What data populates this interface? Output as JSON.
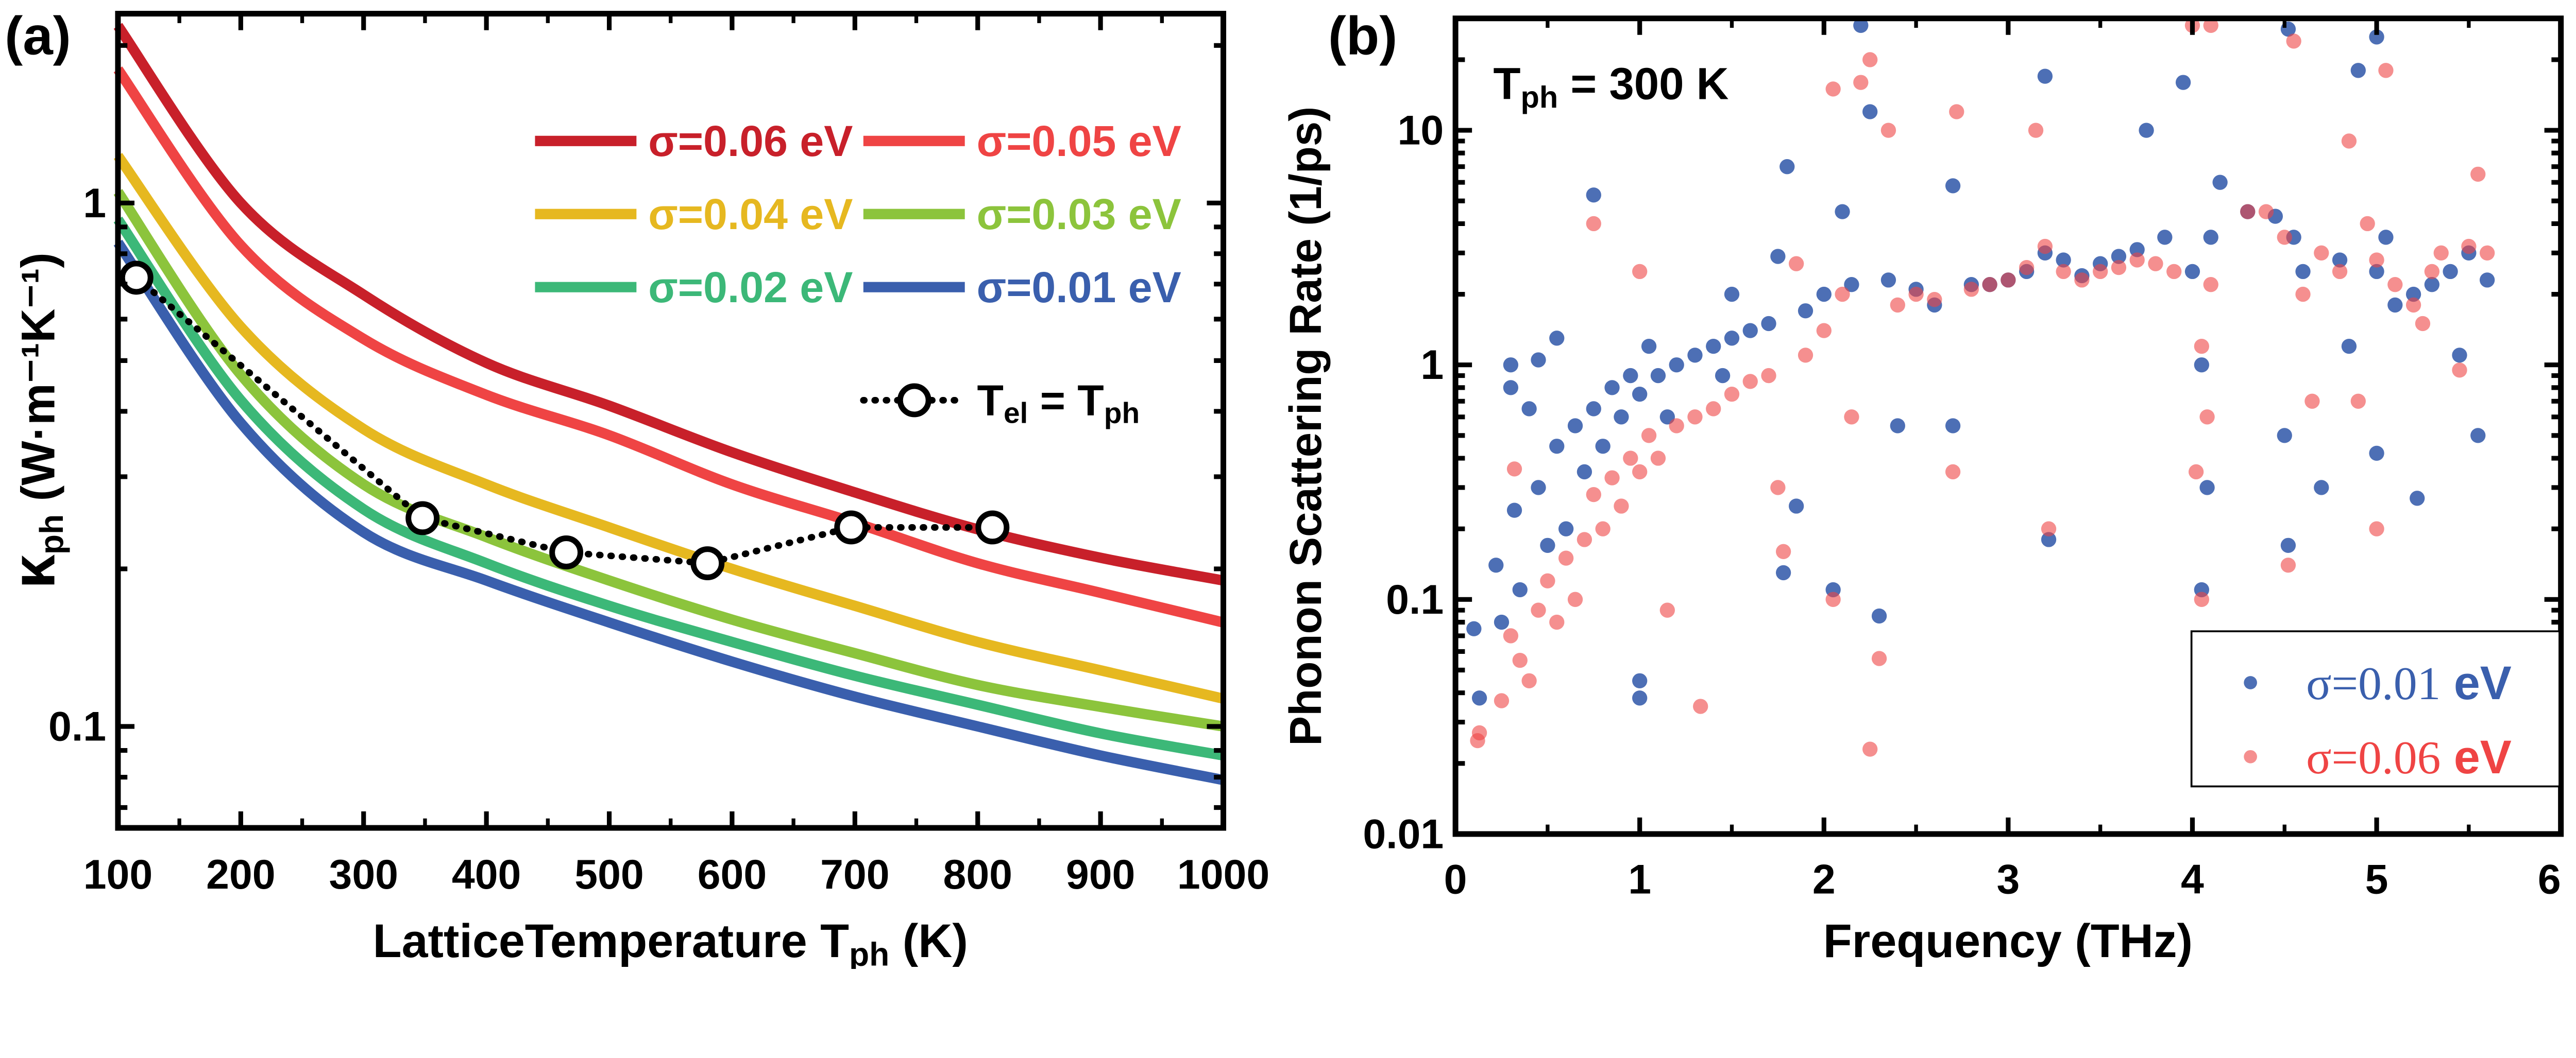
{
  "chart_data": [
    {
      "panel_label": "(a)",
      "type": "line",
      "xlabel": {
        "main": "LatticeTemperature T",
        "sub": "ph",
        "unit": " (K)"
      },
      "ylabel": {
        "main": "κ",
        "sub": "ph",
        "unit": " (W·m⁻¹K⁻¹)"
      },
      "xlim": [
        100,
        1000
      ],
      "ylim": [
        0.064,
        2.3
      ],
      "yscale": "log",
      "xticks": [
        "100",
        "200",
        "300",
        "400",
        "500",
        "600",
        "700",
        "800",
        "900",
        "1000"
      ],
      "yticks": [
        "0.1",
        "1"
      ],
      "grid": false,
      "legend_placement": "top-right",
      "x": [
        100,
        200,
        300,
        400,
        500,
        600,
        700,
        800,
        900,
        1000
      ],
      "series": [
        {
          "name": "σ=0.06 eV",
          "color": "#c8202a",
          "values": [
            2.18,
            1.0,
            0.668,
            0.495,
            0.41,
            0.334,
            0.28,
            0.238,
            0.21,
            0.19
          ]
        },
        {
          "name": "σ=0.05 eV",
          "color": "#ef4444",
          "values": [
            1.8,
            0.83,
            0.55,
            0.43,
            0.36,
            0.29,
            0.245,
            0.205,
            0.18,
            0.158
          ]
        },
        {
          "name": "σ=0.04 eV",
          "color": "#e6b820",
          "values": [
            1.23,
            0.58,
            0.37,
            0.29,
            0.24,
            0.2,
            0.17,
            0.145,
            0.128,
            0.113
          ]
        },
        {
          "name": "σ=0.03 eV",
          "color": "#8cc43c",
          "values": [
            1.05,
            0.47,
            0.29,
            0.23,
            0.19,
            0.16,
            0.138,
            0.12,
            0.109,
            0.1
          ]
        },
        {
          "name": "σ=0.02 eV",
          "color": "#3cb878",
          "values": [
            0.93,
            0.42,
            0.26,
            0.205,
            0.17,
            0.145,
            0.125,
            0.11,
            0.097,
            0.088
          ]
        },
        {
          "name": "σ=0.01 eV",
          "color": "#3a5fad",
          "values": [
            0.84,
            0.38,
            0.235,
            0.19,
            0.158,
            0.133,
            0.114,
            0.1,
            0.088,
            0.079
          ]
        }
      ],
      "marker_series": {
        "name": {
          "main": "T",
          "sub1": "el",
          "mid": " = T",
          "sub2": "ph"
        },
        "color": "#000000",
        "x": [
          115,
          348,
          465,
          580,
          697,
          812
        ],
        "values": [
          0.72,
          0.25,
          0.215,
          0.205,
          0.24,
          0.24
        ]
      }
    },
    {
      "panel_label": "(b)",
      "type": "scatter",
      "annotation": {
        "main": "T",
        "sub": "ph",
        "rest": " = 300 K"
      },
      "xlabel": "Frequency (THz)",
      "ylabel": "Phonon Scattering Rate (1/ps)",
      "xlim": [
        0,
        6
      ],
      "ylim": [
        0.01,
        30
      ],
      "yscale": "log",
      "xticks": [
        "0",
        "1",
        "2",
        "3",
        "4",
        "5",
        "6"
      ],
      "yticks": [
        "0.01",
        "0.1",
        "1",
        "10"
      ],
      "grid": false,
      "legend_placement": "bottom-right",
      "series": [
        {
          "name": {
            "sigma": "σ=0.01",
            "unit": " eV"
          },
          "color": "#3a5fad",
          "points": [
            [
              0.1,
              0.075
            ],
            [
              0.13,
              0.038
            ],
            [
              0.22,
              0.14
            ],
            [
              0.25,
              0.08
            ],
            [
              0.3,
              1.0
            ],
            [
              0.3,
              0.8
            ],
            [
              0.32,
              0.24
            ],
            [
              0.35,
              0.11
            ],
            [
              0.4,
              0.65
            ],
            [
              0.45,
              0.3
            ],
            [
              0.45,
              1.05
            ],
            [
              0.5,
              0.17
            ],
            [
              0.55,
              1.3
            ],
            [
              0.55,
              0.45
            ],
            [
              0.6,
              0.2
            ],
            [
              0.65,
              0.55
            ],
            [
              0.7,
              0.35
            ],
            [
              0.75,
              5.3
            ],
            [
              0.75,
              0.65
            ],
            [
              0.8,
              0.45
            ],
            [
              0.85,
              0.8
            ],
            [
              0.9,
              0.6
            ],
            [
              0.95,
              0.9
            ],
            [
              1.0,
              0.045
            ],
            [
              1.0,
              0.038
            ],
            [
              1.0,
              0.75
            ],
            [
              1.05,
              1.2
            ],
            [
              1.1,
              0.9
            ],
            [
              1.15,
              0.6
            ],
            [
              1.2,
              1.0
            ],
            [
              1.3,
              1.1
            ],
            [
              1.4,
              1.2
            ],
            [
              1.45,
              0.9
            ],
            [
              1.5,
              1.3
            ],
            [
              1.5,
              2.0
            ],
            [
              1.6,
              1.4
            ],
            [
              1.7,
              1.5
            ],
            [
              1.75,
              2.9
            ],
            [
              1.78,
              0.13
            ],
            [
              1.8,
              7.0
            ],
            [
              1.85,
              0.25
            ],
            [
              1.9,
              1.7
            ],
            [
              2.0,
              2.0
            ],
            [
              2.05,
              0.11
            ],
            [
              2.1,
              4.5
            ],
            [
              2.15,
              2.2
            ],
            [
              2.2,
              28
            ],
            [
              2.25,
              12
            ],
            [
              2.3,
              0.085
            ],
            [
              2.35,
              2.3
            ],
            [
              2.4,
              0.55
            ],
            [
              2.5,
              2.1
            ],
            [
              2.6,
              1.8
            ],
            [
              2.7,
              5.8
            ],
            [
              2.7,
              0.55
            ],
            [
              2.8,
              2.2
            ],
            [
              2.9,
              2.2
            ],
            [
              3.0,
              2.3
            ],
            [
              3.1,
              2.5
            ],
            [
              3.2,
              17
            ],
            [
              3.2,
              3.0
            ],
            [
              3.22,
              0.18
            ],
            [
              3.3,
              2.8
            ],
            [
              3.4,
              2.4
            ],
            [
              3.5,
              2.7
            ],
            [
              3.6,
              2.9
            ],
            [
              3.7,
              3.1
            ],
            [
              3.75,
              10
            ],
            [
              3.85,
              3.5
            ],
            [
              3.95,
              16
            ],
            [
              4.0,
              2.5
            ],
            [
              4.05,
              1.0
            ],
            [
              4.05,
              0.11
            ],
            [
              4.08,
              0.3
            ],
            [
              4.1,
              3.5
            ],
            [
              4.15,
              6.0
            ],
            [
              4.3,
              4.5
            ],
            [
              4.45,
              4.3
            ],
            [
              4.52,
              27
            ],
            [
              4.52,
              0.17
            ],
            [
              4.5,
              0.5
            ],
            [
              4.55,
              3.5
            ],
            [
              4.6,
              2.5
            ],
            [
              4.7,
              0.3
            ],
            [
              4.8,
              2.8
            ],
            [
              4.85,
              1.2
            ],
            [
              4.9,
              18
            ],
            [
              5.0,
              25
            ],
            [
              5.0,
              0.42
            ],
            [
              5.0,
              2.5
            ],
            [
              5.05,
              3.5
            ],
            [
              5.1,
              1.8
            ],
            [
              5.2,
              2.0
            ],
            [
              5.22,
              0.27
            ],
            [
              5.3,
              2.2
            ],
            [
              5.4,
              2.5
            ],
            [
              5.45,
              1.1
            ],
            [
              5.5,
              3.0
            ],
            [
              5.55,
              0.5
            ],
            [
              5.6,
              2.3
            ]
          ]
        },
        {
          "name": {
            "sigma": "σ=0.06",
            "unit": " eV"
          },
          "color": "#ef4444",
          "points": [
            [
              0.12,
              0.025
            ],
            [
              0.13,
              0.027
            ],
            [
              0.25,
              0.037
            ],
            [
              0.3,
              0.07
            ],
            [
              0.32,
              0.36
            ],
            [
              0.35,
              0.055
            ],
            [
              0.4,
              0.045
            ],
            [
              0.45,
              0.09
            ],
            [
              0.5,
              0.12
            ],
            [
              0.55,
              0.08
            ],
            [
              0.6,
              0.15
            ],
            [
              0.65,
              0.1
            ],
            [
              0.7,
              0.18
            ],
            [
              0.75,
              4.0
            ],
            [
              0.75,
              0.28
            ],
            [
              0.8,
              0.2
            ],
            [
              0.85,
              0.33
            ],
            [
              0.9,
              0.25
            ],
            [
              0.95,
              0.4
            ],
            [
              1.0,
              2.5
            ],
            [
              1.0,
              0.35
            ],
            [
              1.05,
              0.5
            ],
            [
              1.1,
              0.4
            ],
            [
              1.15,
              0.09
            ],
            [
              1.2,
              0.55
            ],
            [
              1.3,
              0.6
            ],
            [
              1.33,
              0.035
            ],
            [
              1.4,
              0.65
            ],
            [
              1.5,
              0.75
            ],
            [
              1.6,
              0.85
            ],
            [
              1.7,
              0.9
            ],
            [
              1.75,
              0.3
            ],
            [
              1.78,
              0.16
            ],
            [
              1.85,
              2.7
            ],
            [
              1.9,
              1.1
            ],
            [
              2.0,
              1.4
            ],
            [
              2.05,
              0.1
            ],
            [
              2.05,
              15
            ],
            [
              2.1,
              2.0
            ],
            [
              2.15,
              0.6
            ],
            [
              2.2,
              16
            ],
            [
              2.25,
              20
            ],
            [
              2.25,
              0.023
            ],
            [
              2.3,
              0.056
            ],
            [
              2.35,
              10
            ],
            [
              2.4,
              1.8
            ],
            [
              2.5,
              2.0
            ],
            [
              2.6,
              1.9
            ],
            [
              2.7,
              0.35
            ],
            [
              2.72,
              12
            ],
            [
              2.8,
              2.1
            ],
            [
              2.9,
              2.2
            ],
            [
              3.0,
              2.3
            ],
            [
              3.1,
              2.6
            ],
            [
              3.15,
              10
            ],
            [
              3.2,
              3.2
            ],
            [
              3.22,
              0.2
            ],
            [
              3.3,
              2.5
            ],
            [
              3.4,
              2.3
            ],
            [
              3.5,
              2.5
            ],
            [
              3.6,
              2.6
            ],
            [
              3.7,
              2.8
            ],
            [
              3.8,
              2.7
            ],
            [
              3.9,
              2.5
            ],
            [
              4.0,
              28
            ],
            [
              4.02,
              0.35
            ],
            [
              4.05,
              1.2
            ],
            [
              4.05,
              0.1
            ],
            [
              4.08,
              0.6
            ],
            [
              4.1,
              28
            ],
            [
              4.1,
              2.2
            ],
            [
              4.3,
              4.5
            ],
            [
              4.4,
              4.5
            ],
            [
              4.5,
              3.5
            ],
            [
              4.52,
              0.14
            ],
            [
              4.55,
              24
            ],
            [
              4.6,
              2.0
            ],
            [
              4.65,
              0.7
            ],
            [
              4.7,
              3.0
            ],
            [
              4.8,
              2.5
            ],
            [
              4.85,
              9
            ],
            [
              4.9,
              0.7
            ],
            [
              4.95,
              4.0
            ],
            [
              5.0,
              0.2
            ],
            [
              5.0,
              2.8
            ],
            [
              5.05,
              18
            ],
            [
              5.1,
              2.2
            ],
            [
              5.2,
              1.8
            ],
            [
              5.25,
              1.5
            ],
            [
              5.3,
              2.5
            ],
            [
              5.35,
              3.0
            ],
            [
              5.45,
              0.95
            ],
            [
              5.5,
              3.2
            ],
            [
              5.55,
              6.5
            ],
            [
              5.6,
              3.0
            ]
          ]
        }
      ]
    }
  ]
}
